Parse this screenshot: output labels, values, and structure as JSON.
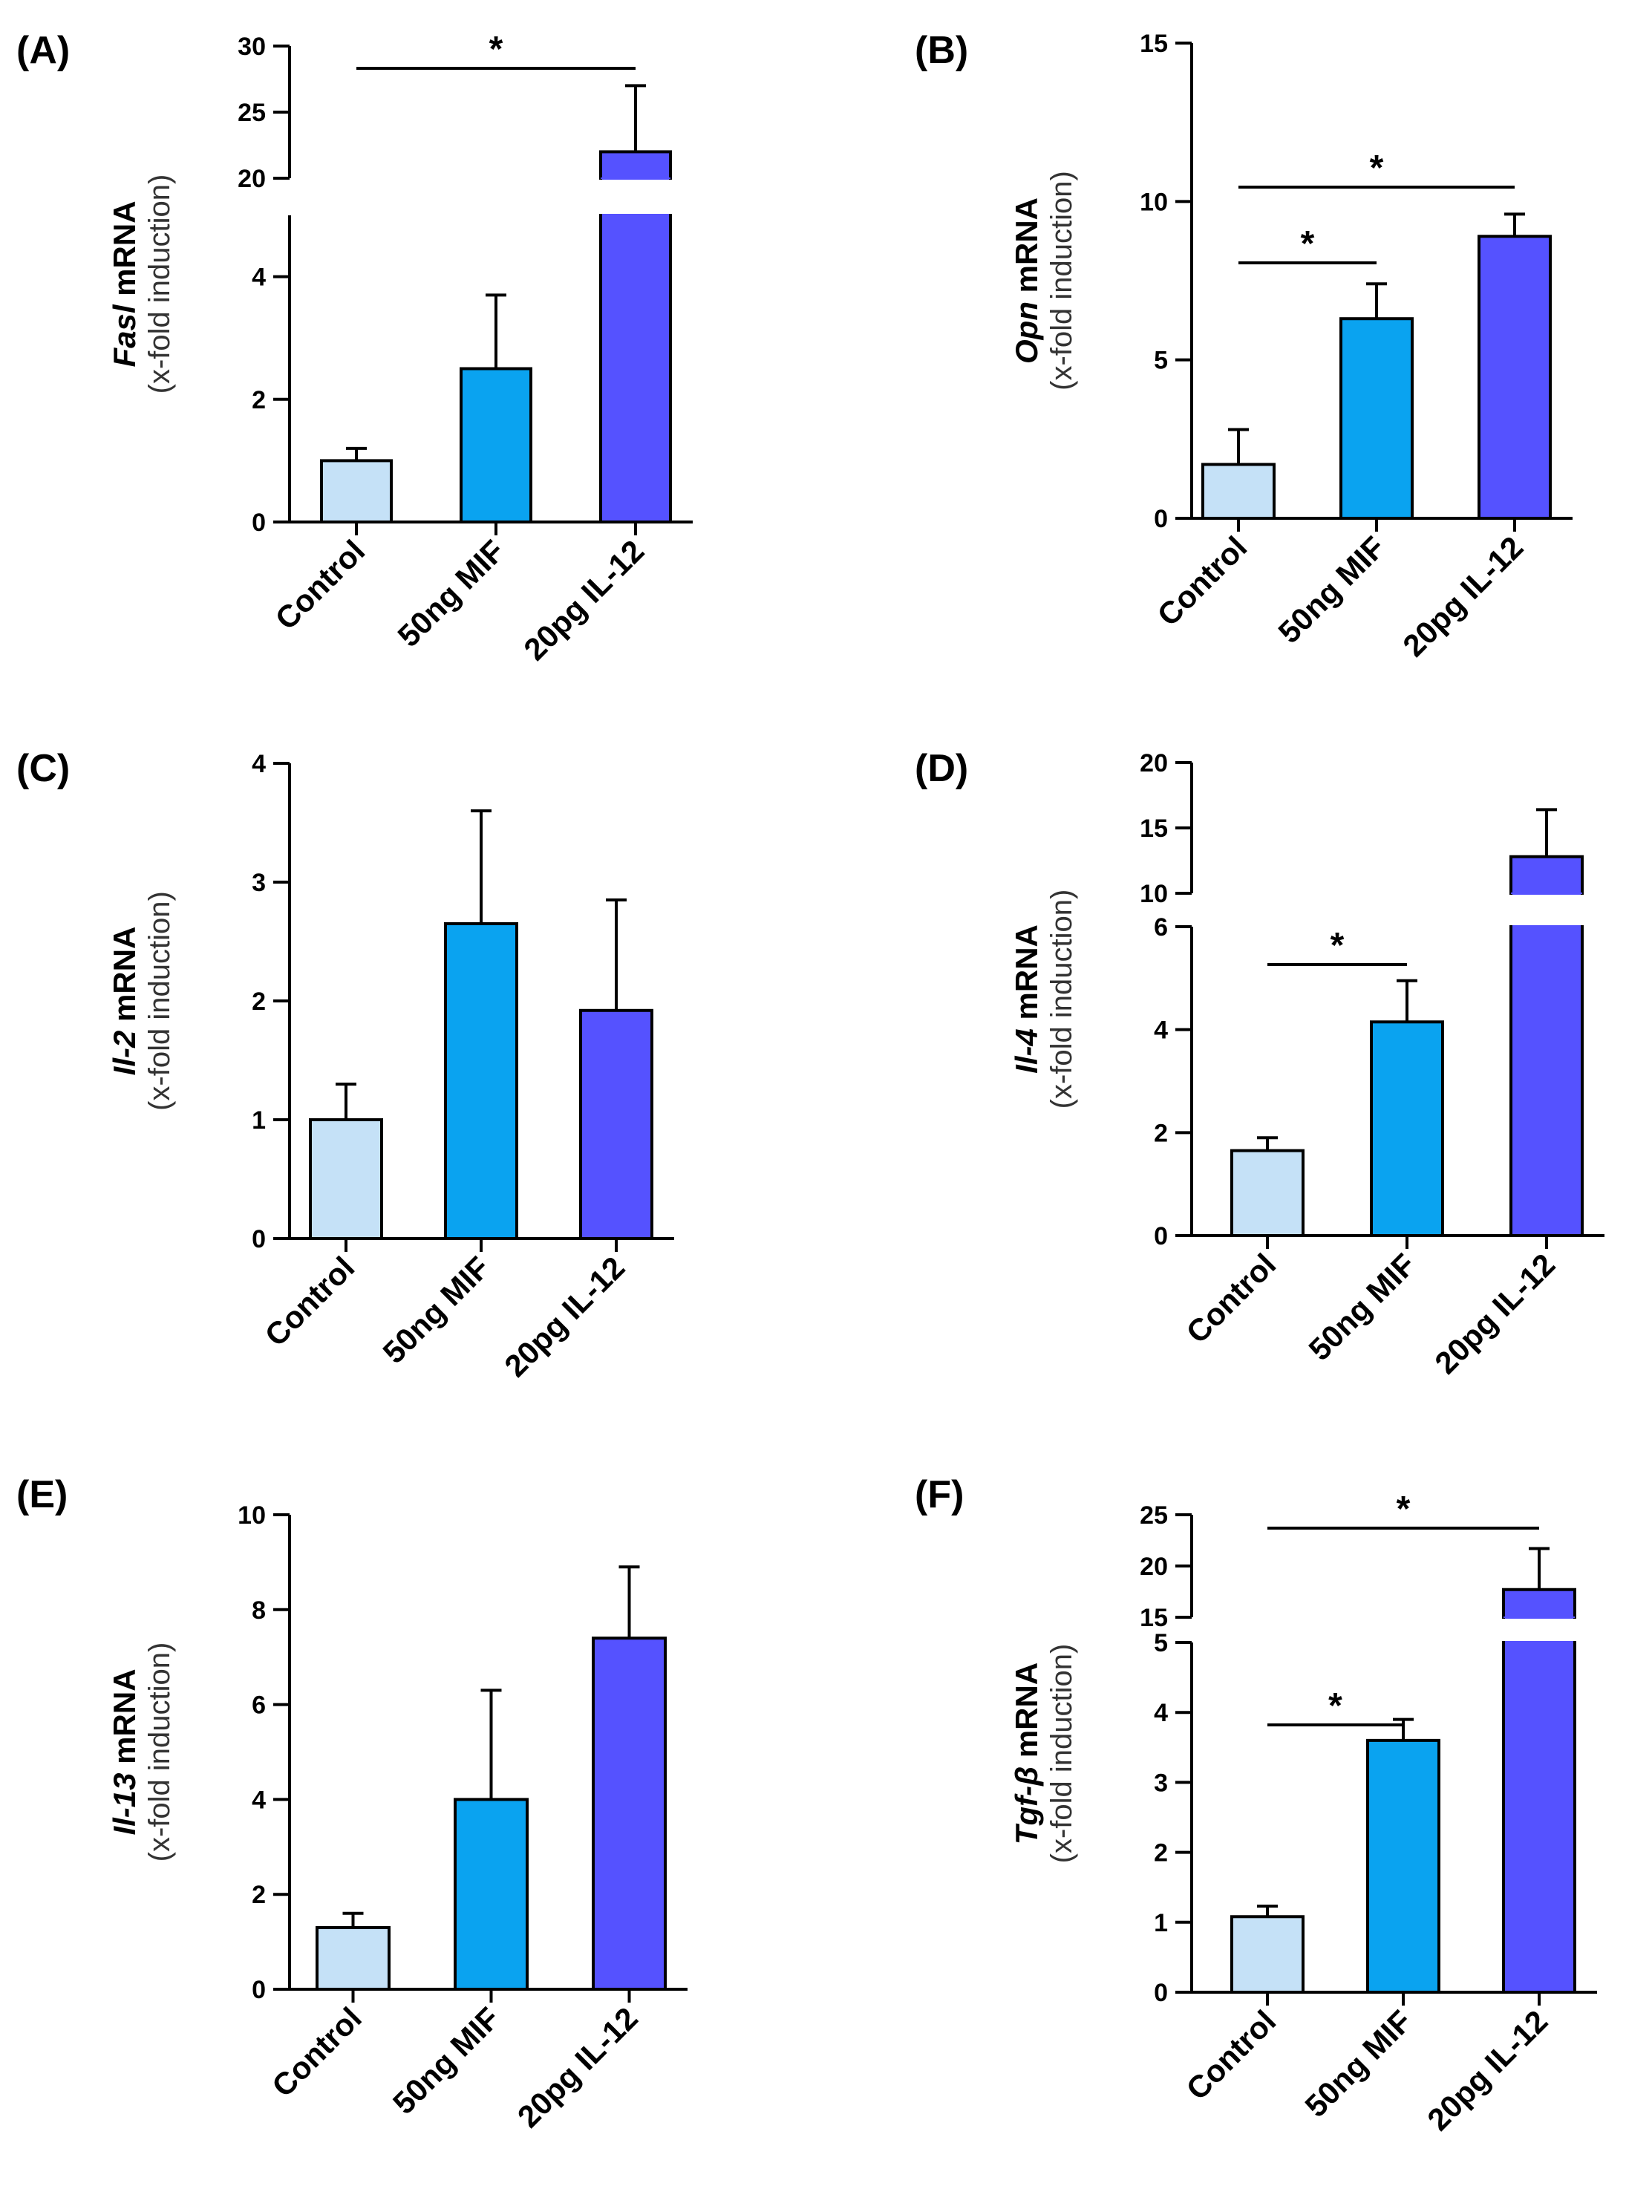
{
  "figure_domain": "Chart",
  "categories": [
    "Control",
    "50ng MIF",
    "20pg IL-12"
  ],
  "colors": [
    "#c5e1f7",
    "#0aa3f0",
    "#5552ff"
  ],
  "chart_data": [
    {
      "id": "A",
      "type": "bar",
      "label": "(A)",
      "ylabel_gene": "Fasl",
      "ylabel_suffix": " mRNA",
      "ylabel_sub": "(x-fold induction)",
      "categories": [
        "Control",
        "50ng MIF",
        "20pg IL-12"
      ],
      "values": [
        1.0,
        2.5,
        22.0
      ],
      "errors": [
        0.2,
        1.2,
        5.0
      ],
      "axis_break": true,
      "lower_range": [
        0,
        5
      ],
      "lower_ticks": [
        "0",
        "2",
        "4"
      ],
      "upper_range": [
        20,
        30
      ],
      "upper_ticks": [
        "20",
        "25",
        "30"
      ],
      "significance": [
        {
          "from": 0,
          "to": 2,
          "label": "*"
        }
      ]
    },
    {
      "id": "B",
      "type": "bar",
      "label": "(B)",
      "ylabel_gene": "Opn",
      "ylabel_suffix": " mRNA",
      "ylabel_sub": "(x-fold induction)",
      "categories": [
        "Control",
        "50ng MIF",
        "20pg IL-12"
      ],
      "values": [
        1.7,
        6.3,
        8.9
      ],
      "errors": [
        1.1,
        1.1,
        0.7
      ],
      "axis_break": false,
      "ylim": [
        0,
        15
      ],
      "ticks": [
        "0",
        "5",
        "10",
        "15"
      ],
      "significance": [
        {
          "from": 0,
          "to": 2,
          "label": "*"
        },
        {
          "from": 0,
          "to": 1,
          "label": "*"
        }
      ]
    },
    {
      "id": "C",
      "type": "bar",
      "label": "(C)",
      "ylabel_gene": "Il-2",
      "ylabel_suffix": " mRNA",
      "ylabel_sub": "(x-fold induction)",
      "categories": [
        "Control",
        "50ng MIF",
        "20pg IL-12"
      ],
      "values": [
        1.0,
        2.65,
        1.92
      ],
      "errors": [
        0.3,
        0.95,
        0.93
      ],
      "axis_break": false,
      "ylim": [
        0,
        4
      ],
      "ticks": [
        "0",
        "1",
        "2",
        "3",
        "4"
      ],
      "significance": []
    },
    {
      "id": "D",
      "type": "bar",
      "label": "(D)",
      "ylabel_gene": "Il-4",
      "ylabel_suffix": " mRNA",
      "ylabel_sub": "(x-fold induction)",
      "categories": [
        "Control",
        "50ng MIF",
        "20pg IL-12"
      ],
      "values": [
        1.65,
        4.15,
        12.8
      ],
      "errors": [
        0.25,
        0.8,
        3.6
      ],
      "axis_break": true,
      "lower_range": [
        0,
        6
      ],
      "lower_ticks": [
        "0",
        "2",
        "4",
        "6"
      ],
      "upper_range": [
        10,
        20
      ],
      "upper_ticks": [
        "10",
        "15",
        "20"
      ],
      "significance": [
        {
          "from": 0,
          "to": 1,
          "label": "*"
        }
      ]
    },
    {
      "id": "E",
      "type": "bar",
      "label": "(E)",
      "ylabel_gene": "Il-13",
      "ylabel_suffix": " mRNA",
      "ylabel_sub": "(x-fold induction)",
      "categories": [
        "Control",
        "50ng MIF",
        "20pg IL-12"
      ],
      "values": [
        1.3,
        4.0,
        7.4
      ],
      "errors": [
        0.3,
        2.3,
        1.5
      ],
      "axis_break": false,
      "ylim": [
        0,
        10
      ],
      "ticks": [
        "0",
        "2",
        "4",
        "6",
        "8",
        "10"
      ],
      "significance": []
    },
    {
      "id": "F",
      "type": "bar",
      "label": "(F)",
      "ylabel_gene": "Tgf-β",
      "ylabel_suffix": " mRNA",
      "ylabel_sub": "(x-fold induction)",
      "categories": [
        "Control",
        "50ng MIF",
        "20pg IL-12"
      ],
      "values": [
        1.08,
        3.6,
        17.7
      ],
      "errors": [
        0.15,
        0.3,
        4.0
      ],
      "axis_break": true,
      "lower_range": [
        0,
        5
      ],
      "lower_ticks": [
        "0",
        "1",
        "2",
        "3",
        "4",
        "5"
      ],
      "upper_range": [
        15,
        25
      ],
      "upper_ticks": [
        "15",
        "20",
        "25"
      ],
      "significance": [
        {
          "from": 0,
          "to": 2,
          "label": "*"
        },
        {
          "from": 0,
          "to": 1,
          "label": "*"
        }
      ]
    }
  ]
}
